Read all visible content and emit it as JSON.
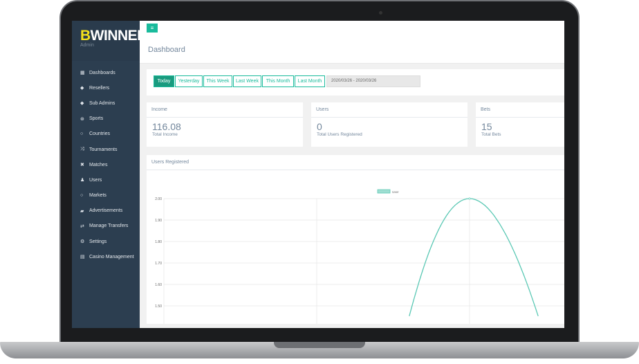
{
  "brand": {
    "logo_first": "B",
    "logo_rest": "WINNER",
    "subtitle": "Admin",
    "accent": "#f5e21b"
  },
  "sidebar": {
    "items": [
      {
        "label": "Dashboards",
        "icon": "grid-icon",
        "glyph": "▦"
      },
      {
        "label": "Resellers",
        "icon": "tag-icon",
        "glyph": "◆"
      },
      {
        "label": "Sub Admins",
        "icon": "tag-icon",
        "glyph": "◆"
      },
      {
        "label": "Sports",
        "icon": "ball-icon",
        "glyph": "⊛"
      },
      {
        "label": "Countries",
        "icon": "circle-icon",
        "glyph": "○"
      },
      {
        "label": "Tournaments",
        "icon": "shuffle-icon",
        "glyph": "⤨"
      },
      {
        "label": "Matches",
        "icon": "cross-icon",
        "glyph": "✖"
      },
      {
        "label": "Users",
        "icon": "user-icon",
        "glyph": "♟"
      },
      {
        "label": "Markets",
        "icon": "circle-icon",
        "glyph": "○"
      },
      {
        "label": "Advertisements",
        "icon": "bullhorn-icon",
        "glyph": "▰"
      },
      {
        "label": "Manage Transfers",
        "icon": "exchange-icon",
        "glyph": "⇄"
      },
      {
        "label": "Settings",
        "icon": "gears-icon",
        "glyph": "⚙"
      },
      {
        "label": "Casino Management",
        "icon": "card-icon",
        "glyph": "▤"
      }
    ]
  },
  "header": {
    "menu_glyph": "≡",
    "title": "Dashboard"
  },
  "filters": {
    "buttons": [
      "Today",
      "Yesterday",
      "This Week",
      "Last Week",
      "This Month",
      "Last Month"
    ],
    "active": "Today",
    "date_range": "2020/03/26 - 2020/03/26"
  },
  "cards": [
    {
      "title": "Income",
      "value": "116.08",
      "subtitle": "Total Income"
    },
    {
      "title": "Users",
      "value": "0",
      "subtitle": "Total Users Registered"
    },
    {
      "title": "Bets",
      "value": "15",
      "subtitle": "Total Bets"
    }
  ],
  "chart_panel": {
    "title": "Users Registered"
  },
  "chart_data": {
    "type": "line",
    "series": [
      {
        "name": "User",
        "values": [
          0,
          0,
          2,
          0
        ]
      }
    ],
    "y_ticks": [
      "2.00",
      "1.90",
      "1.80",
      "1.70",
      "1.60",
      "1.50",
      "1.40"
    ],
    "ylim_visible": [
      1.4,
      2.0
    ],
    "color": "#5ac8b4",
    "grid": true,
    "legend": "top-center"
  },
  "colors": {
    "accent": "#1abb9c",
    "sidebar": "#2c3e50"
  }
}
